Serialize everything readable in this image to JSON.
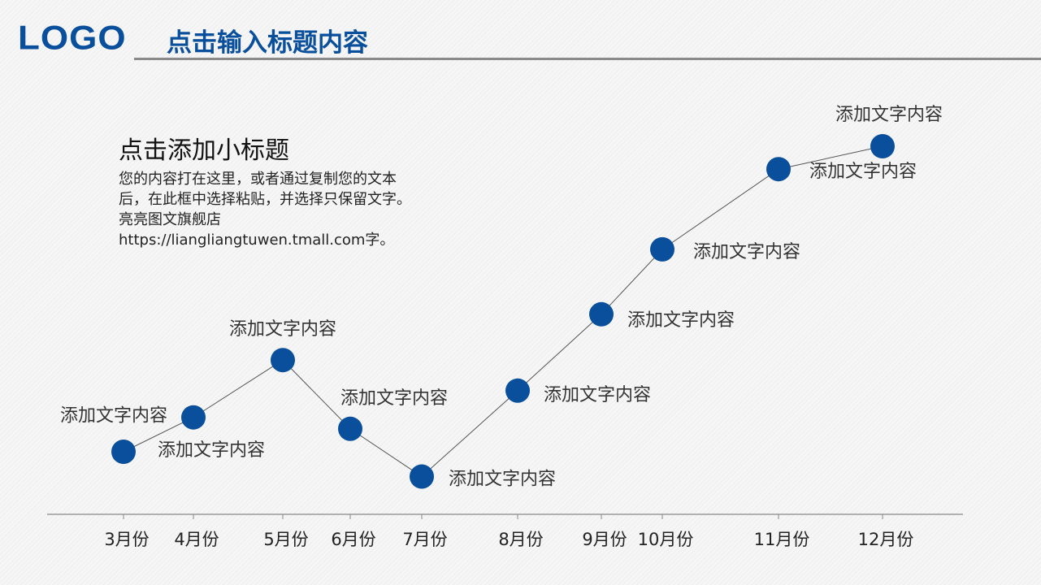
{
  "header": {
    "logo": "LOGO",
    "title": "点击输入标题内容"
  },
  "intro": {
    "subtitle": "点击添加小标题",
    "lines": [
      "您的内容打在这里，或者通过复制您的文本",
      "后，在此框中选择粘贴，并选择只保留文字。",
      "亮亮图文旗舰店",
      "https://liangliangtuwen.tmall.com字。"
    ]
  },
  "colors": {
    "brand": "#0a4f9c",
    "marker": "#0a4f9c",
    "line": "#555555",
    "axis": "#888888"
  },
  "chart_data": {
    "type": "line",
    "categories": [
      "3月份",
      "4月份",
      "5月份",
      "6月份",
      "7月份",
      "8月份",
      "9月份",
      "10月份",
      "11月份",
      "12月份"
    ],
    "values": [
      1.0,
      1.9,
      3.4,
      1.6,
      0.35,
      2.6,
      4.6,
      6.3,
      8.4,
      9.0
    ],
    "point_labels": [
      "添加文字内容",
      "添加文字内容",
      "添加文字内容",
      "添加文字内容",
      "添加文字内容",
      "添加文字内容",
      "添加文字内容",
      "添加文字内容",
      "添加文字内容",
      "添加文字内容"
    ],
    "ylim": [
      0,
      10
    ],
    "grid": false,
    "legend": "none"
  }
}
